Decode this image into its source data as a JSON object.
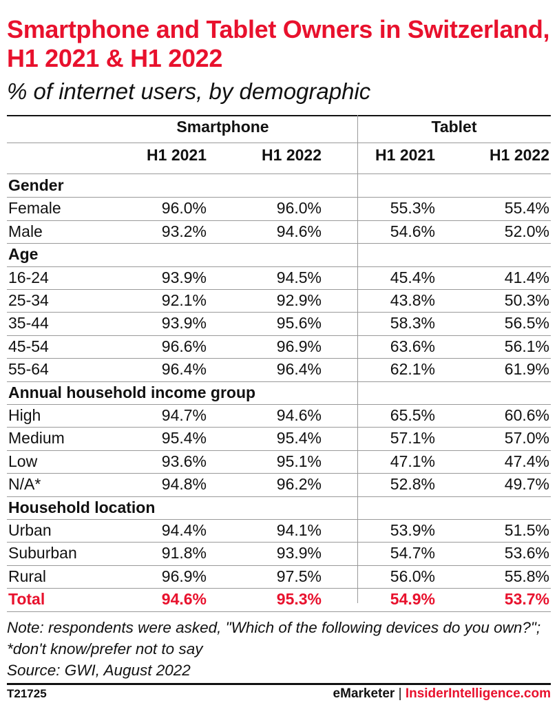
{
  "title": "Smartphone and Tablet Owners in Switzerland, H1 2021 & H1 2022",
  "subtitle": "% of internet users, by demographic",
  "chart_data": {
    "type": "table",
    "column_groups": [
      "Smartphone",
      "Tablet"
    ],
    "columns": [
      "H1 2021",
      "H1 2022",
      "H1 2021",
      "H1 2022"
    ],
    "sections": [
      {
        "name": "Gender",
        "rows": [
          {
            "label": "Female",
            "values": [
              "96.0%",
              "96.0%",
              "55.3%",
              "55.4%"
            ]
          },
          {
            "label": "Male",
            "values": [
              "93.2%",
              "94.6%",
              "54.6%",
              "52.0%"
            ]
          }
        ]
      },
      {
        "name": "Age",
        "rows": [
          {
            "label": "16-24",
            "values": [
              "93.9%",
              "94.5%",
              "45.4%",
              "41.4%"
            ]
          },
          {
            "label": "25-34",
            "values": [
              "92.1%",
              "92.9%",
              "43.8%",
              "50.3%"
            ]
          },
          {
            "label": "35-44",
            "values": [
              "93.9%",
              "95.6%",
              "58.3%",
              "56.5%"
            ]
          },
          {
            "label": "45-54",
            "values": [
              "96.6%",
              "96.9%",
              "63.6%",
              "56.1%"
            ]
          },
          {
            "label": "55-64",
            "values": [
              "96.4%",
              "96.4%",
              "62.1%",
              "61.9%"
            ]
          }
        ]
      },
      {
        "name": "Annual household income group",
        "rows": [
          {
            "label": "High",
            "values": [
              "94.7%",
              "94.6%",
              "65.5%",
              "60.6%"
            ]
          },
          {
            "label": "Medium",
            "values": [
              "95.4%",
              "95.4%",
              "57.1%",
              "57.0%"
            ]
          },
          {
            "label": "Low",
            "values": [
              "93.6%",
              "95.1%",
              "47.1%",
              "47.4%"
            ]
          },
          {
            "label": "N/A*",
            "values": [
              "94.8%",
              "96.2%",
              "52.8%",
              "49.7%"
            ]
          }
        ]
      },
      {
        "name": "Household location",
        "rows": [
          {
            "label": "Urban",
            "values": [
              "94.4%",
              "94.1%",
              "53.9%",
              "51.5%"
            ]
          },
          {
            "label": "Suburban",
            "values": [
              "91.8%",
              "93.9%",
              "54.7%",
              "53.6%"
            ]
          },
          {
            "label": "Rural",
            "values": [
              "96.9%",
              "97.5%",
              "56.0%",
              "55.8%"
            ]
          }
        ]
      }
    ],
    "total": {
      "label": "Total",
      "values": [
        "94.6%",
        "95.3%",
        "54.9%",
        "53.7%"
      ]
    }
  },
  "note": "Note: respondents were asked, \"Which of the following devices do you own?\"; *don't know/prefer not to say",
  "source": "Source: GWI, August 2022",
  "footer": {
    "code": "T21725",
    "brand_left": "eMarketer",
    "brand_sep": "|",
    "brand_right": "InsiderIntelligence.com"
  },
  "colors": {
    "accent": "#e8112d",
    "text": "#111111",
    "rule": "#999999"
  }
}
